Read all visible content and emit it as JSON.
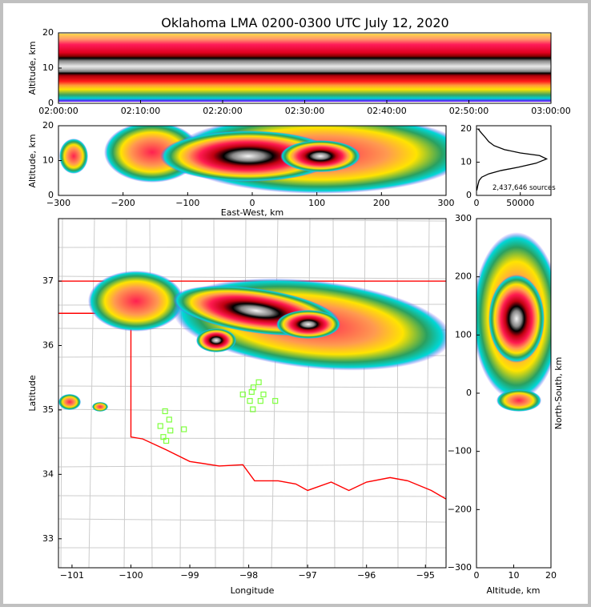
{
  "title": "Oklahoma LMA 0200-0300 UTC July 12, 2020",
  "colors": {
    "frame": "#c0c0c0",
    "border": "#ff0000",
    "station": "#7fff3f",
    "grid": "#cccccc"
  },
  "chart_data": [
    {
      "type": "heatmap",
      "name": "time-altitude",
      "ylabel": "Altitude, km",
      "ylim": [
        0,
        20
      ],
      "yticks": [
        "0",
        "10",
        "20"
      ],
      "xticks": [
        "02:00:00",
        "02:10:00",
        "02:20:00",
        "02:30:00",
        "02:40:00",
        "02:50:00",
        "03:00:00"
      ],
      "xlim": [
        "02:00:00",
        "03:00:00"
      ]
    },
    {
      "type": "heatmap",
      "name": "east-west-altitude",
      "xlabel": "East-West, km",
      "ylabel": "Altitude, km",
      "xlim": [
        -300,
        300
      ],
      "ylim": [
        0,
        20
      ],
      "xticks": [
        "−300",
        "−200",
        "−100",
        "0",
        "100",
        "200",
        "300"
      ],
      "yticks": [
        "0",
        "10",
        "20"
      ]
    },
    {
      "type": "line",
      "name": "altitude-histogram",
      "xlim": [
        0,
        85000
      ],
      "ylim": [
        0,
        21
      ],
      "xticks": [
        "0",
        "50000"
      ],
      "yticks": [
        "0",
        "10",
        "20"
      ],
      "annotation": "2,437,646 sources",
      "points": [
        [
          400,
          1.5
        ],
        [
          1500,
          3
        ],
        [
          3000,
          4.5
        ],
        [
          6000,
          5.5
        ],
        [
          14000,
          6.5
        ],
        [
          28000,
          7.5
        ],
        [
          48000,
          8.5
        ],
        [
          68000,
          9.7
        ],
        [
          80000,
          11
        ],
        [
          72000,
          12
        ],
        [
          50000,
          12.8
        ],
        [
          32000,
          13.8
        ],
        [
          20000,
          15
        ],
        [
          14000,
          16.2
        ],
        [
          9000,
          17.8
        ],
        [
          5000,
          19
        ],
        [
          2000,
          20
        ]
      ]
    },
    {
      "type": "heatmap",
      "name": "plan-view-map",
      "xlabel": "Longitude",
      "ylabel": "Latitude",
      "xlim": [
        -101.23,
        -94.65
      ],
      "ylim": [
        32.55,
        37.97
      ],
      "xticks": [
        "−101",
        "−100",
        "−99",
        "−98",
        "−97",
        "−96",
        "−95"
      ],
      "yticks": [
        "33",
        "34",
        "35",
        "36",
        "37"
      ],
      "stations": [
        [
          -99.42,
          34.98
        ],
        [
          -99.35,
          34.85
        ],
        [
          -99.5,
          34.75
        ],
        [
          -99.33,
          34.68
        ],
        [
          -99.45,
          34.58
        ],
        [
          -99.4,
          34.52
        ],
        [
          -99.1,
          34.7
        ],
        [
          -97.83,
          35.43
        ],
        [
          -97.92,
          35.35
        ],
        [
          -97.95,
          35.28
        ],
        [
          -98.1,
          35.24
        ],
        [
          -97.75,
          35.24
        ],
        [
          -97.98,
          35.14
        ],
        [
          -97.8,
          35.14
        ],
        [
          -97.55,
          35.14
        ],
        [
          -97.93,
          35.01
        ]
      ]
    },
    {
      "type": "heatmap",
      "name": "altitude-north-south",
      "xlabel": "Altitude, km",
      "ylabel": "North-South, km",
      "xlim": [
        0,
        20
      ],
      "ylim": [
        -300,
        300
      ],
      "xticks": [
        "0",
        "10",
        "20"
      ],
      "yticks": [
        "−300",
        "−200",
        "−100",
        "0",
        "100",
        "200",
        "300"
      ]
    }
  ]
}
